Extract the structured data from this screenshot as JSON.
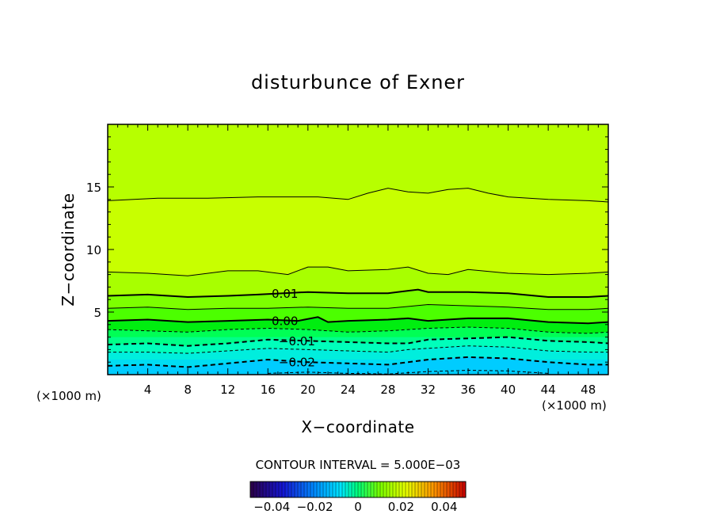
{
  "chart_data": {
    "type": "heatmap",
    "title": "disturbunce of Exner",
    "xlabel": "X−coordinate",
    "ylabel": "Z−coordinate",
    "x_unit_label": "(×1000 m)",
    "x_unit_label_left": "(×1000 m)",
    "xlim": [
      0,
      50
    ],
    "ylim": [
      0,
      20
    ],
    "x_ticks": [
      4,
      8,
      12,
      16,
      20,
      24,
      28,
      32,
      36,
      40,
      44,
      48
    ],
    "x_tick_labels": [
      "4",
      "8",
      "12",
      "16",
      "20",
      "24",
      "28",
      "32",
      "36",
      "40",
      "44",
      "48"
    ],
    "y_ticks": [
      5,
      10,
      15
    ],
    "y_tick_labels": [
      "5",
      "10",
      "15"
    ],
    "contour_interval_label": "CONTOUR INTERVAL = 5.000E−03",
    "contour_interval": 0.005,
    "colorbar": {
      "range": [
        -0.05,
        0.05
      ],
      "ticks": [
        -0.04,
        -0.02,
        0,
        0.02,
        0.04
      ],
      "tick_labels": [
        "−0.04",
        "−0.02",
        "0",
        "0.02",
        "0.04"
      ]
    },
    "color_bands": [
      {
        "z_top": 20.0,
        "color": "#b7ff00"
      },
      {
        "z_top": 13.9,
        "color": "#c8ff00"
      },
      {
        "z_top": 8.2,
        "color": "#a8ff00"
      },
      {
        "z_top": 6.3,
        "color": "#7dff00"
      },
      {
        "z_top": 5.3,
        "color": "#4cff00"
      },
      {
        "z_top": 4.3,
        "color": "#00ee10"
      },
      {
        "z_top": 3.6,
        "color": "#00ff55"
      },
      {
        "z_top": 3.0,
        "color": "#00ff88"
      },
      {
        "z_top": 2.4,
        "color": "#00ffbb"
      },
      {
        "z_top": 1.8,
        "color": "#00eedd"
      },
      {
        "z_top": 1.2,
        "color": "#00ddf2"
      },
      {
        "z_top": 0.7,
        "color": "#00ccff"
      }
    ],
    "contours": [
      {
        "value": 0.015,
        "style": "thin",
        "x": [
          0,
          5,
          10,
          15,
          18,
          21,
          24,
          26,
          28,
          30,
          32,
          34,
          36,
          38,
          40,
          44,
          48,
          50
        ],
        "z": [
          13.9,
          14.1,
          14.1,
          14.2,
          14.2,
          14.2,
          14.0,
          14.5,
          14.9,
          14.6,
          14.5,
          14.8,
          14.9,
          14.5,
          14.2,
          14.0,
          13.9,
          13.8
        ]
      },
      {
        "value": 0.01,
        "style": "thin",
        "x": [
          0,
          4,
          8,
          12,
          15,
          18,
          20,
          22,
          24,
          28,
          30,
          32,
          34,
          36,
          40,
          44,
          48,
          50
        ],
        "z": [
          8.2,
          8.1,
          7.9,
          8.3,
          8.3,
          8.0,
          8.6,
          8.6,
          8.3,
          8.4,
          8.6,
          8.1,
          8.0,
          8.4,
          8.1,
          8.0,
          8.1,
          8.2
        ]
      },
      {
        "value": 0.01,
        "style": "thick",
        "label": "0.01",
        "label_x": 17.7,
        "x": [
          0,
          4,
          8,
          12,
          15,
          20,
          24,
          28,
          30,
          31,
          32,
          34,
          36,
          40,
          44,
          48,
          50
        ],
        "z": [
          6.3,
          6.4,
          6.2,
          6.3,
          6.4,
          6.6,
          6.5,
          6.5,
          6.7,
          6.8,
          6.6,
          6.6,
          6.6,
          6.5,
          6.2,
          6.2,
          6.3
        ]
      },
      {
        "value": 0.005,
        "style": "thin",
        "x": [
          0,
          4,
          8,
          12,
          16,
          20,
          24,
          28,
          32,
          36,
          40,
          44,
          48,
          50
        ],
        "z": [
          5.3,
          5.4,
          5.2,
          5.3,
          5.3,
          5.4,
          5.3,
          5.3,
          5.6,
          5.5,
          5.4,
          5.2,
          5.2,
          5.3
        ]
      },
      {
        "value": 0.0,
        "style": "thick",
        "label": "0.00",
        "label_x": 17.7,
        "x": [
          0,
          4,
          8,
          12,
          16,
          19,
          21,
          22,
          24,
          28,
          30,
          32,
          36,
          40,
          44,
          48,
          50
        ],
        "z": [
          4.3,
          4.4,
          4.2,
          4.3,
          4.4,
          4.3,
          4.6,
          4.2,
          4.3,
          4.4,
          4.5,
          4.3,
          4.5,
          4.5,
          4.2,
          4.1,
          4.2
        ]
      },
      {
        "value": -0.005,
        "style": "dashed-thin",
        "x": [
          0,
          4,
          8,
          12,
          16,
          20,
          24,
          28,
          30,
          32,
          36,
          40,
          44,
          48,
          50
        ],
        "z": [
          3.6,
          3.5,
          3.4,
          3.6,
          3.7,
          3.6,
          3.4,
          3.5,
          3.6,
          3.7,
          3.8,
          3.7,
          3.4,
          3.3,
          3.4
        ]
      },
      {
        "value": -0.01,
        "style": "dashed",
        "label": "−0.01",
        "label_x": 18.9,
        "x": [
          0,
          4,
          8,
          12,
          16,
          20,
          24,
          28,
          30,
          32,
          36,
          40,
          44,
          48,
          50
        ],
        "z": [
          2.4,
          2.5,
          2.3,
          2.5,
          2.8,
          2.7,
          2.6,
          2.5,
          2.5,
          2.8,
          2.9,
          3.0,
          2.7,
          2.6,
          2.5
        ]
      },
      {
        "value": -0.015,
        "style": "dashed-thin",
        "x": [
          0,
          4,
          8,
          12,
          16,
          20,
          24,
          28,
          30,
          32,
          36,
          40,
          44,
          48,
          50
        ],
        "z": [
          1.8,
          1.8,
          1.7,
          1.9,
          2.1,
          2.0,
          1.9,
          1.8,
          2.0,
          2.1,
          2.3,
          2.2,
          1.9,
          1.8,
          1.8
        ]
      },
      {
        "value": -0.02,
        "style": "dashed",
        "label": "−0.02",
        "label_x": 18.9,
        "x": [
          0,
          4,
          8,
          12,
          16,
          20,
          24,
          28,
          30,
          32,
          36,
          40,
          44,
          48,
          50
        ],
        "z": [
          0.7,
          0.8,
          0.6,
          0.9,
          1.2,
          1.0,
          0.9,
          0.8,
          1.0,
          1.2,
          1.4,
          1.3,
          1.0,
          0.8,
          0.8
        ]
      },
      {
        "value": -0.025,
        "style": "dashed-thin",
        "x": [
          16,
          20,
          24,
          28,
          32,
          36,
          40,
          44
        ],
        "z": [
          0.1,
          0.2,
          0.1,
          0.05,
          0.25,
          0.35,
          0.3,
          0.1
        ]
      }
    ]
  }
}
